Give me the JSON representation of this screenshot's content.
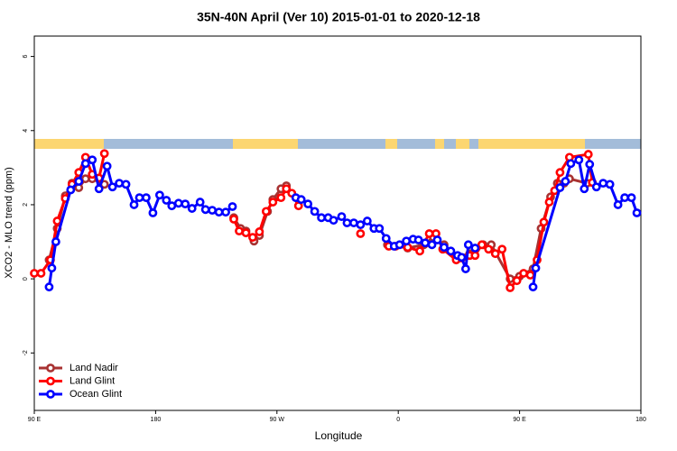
{
  "chart_data": {
    "type": "line",
    "title": "35N-40N April (Ver 10)   2015-01-01 to 2020-12-18",
    "x_label": "Longitude",
    "y_label": "XCO2 - MLO trend (ppm)",
    "xlim": [
      90,
      540
    ],
    "xticks": [
      {
        "value": 90,
        "label": "90 E"
      },
      {
        "value": 180,
        "label": "180"
      },
      {
        "value": 270,
        "label": "90 W"
      },
      {
        "value": 360,
        "label": "0"
      },
      {
        "value": 450,
        "label": "90 E"
      },
      {
        "value": 540,
        "label": "180"
      }
    ],
    "ylim": [
      -3.55,
      6.55
    ],
    "yticks": [
      -2,
      0,
      2,
      4,
      6
    ],
    "legend": "bottom-left",
    "series": [
      {
        "name": "Land Nadir",
        "color": "#a83232",
        "x": [
          101,
          107,
          113,
          118,
          123,
          128,
          133,
          142,
          190,
          238,
          243,
          247,
          253,
          257,
          263,
          267,
          273,
          277,
          315,
          352,
          367,
          379,
          386,
          394,
          403,
          413,
          423,
          429,
          443,
          450,
          460,
          466,
          473,
          478,
          483,
          487,
          500
        ],
        "values": [
          0.51,
          1.36,
          2.24,
          2.58,
          2.46,
          2.7,
          2.7,
          2.55,
          null,
          1.65,
          1.36,
          1.29,
          1.02,
          1.17,
          1.82,
          2.14,
          2.43,
          2.51,
          null,
          0.92,
          0.83,
          0.92,
          1.12,
          0.92,
          0.58,
          0.68,
          0.92,
          0.92,
          0,
          0.07,
          0.27,
          1.36,
          2.21,
          2.58,
          2.58,
          2.7,
          2.58
        ]
      },
      {
        "name": "Land Glint",
        "color": "#ff0000",
        "x": [
          90,
          95,
          102,
          107,
          113,
          118,
          123,
          128,
          133,
          138,
          142,
          190,
          238,
          242,
          247,
          252,
          257,
          262,
          267,
          273,
          277,
          281,
          286,
          310,
          332,
          343,
          353,
          358,
          367,
          376,
          383,
          388,
          393,
          403,
          407,
          413,
          417,
          422,
          427,
          432,
          437,
          443,
          448,
          453,
          458,
          463,
          468,
          472,
          476,
          480,
          487,
          501,
          504
        ],
        "values": [
          0.15,
          0.15,
          0.51,
          1.56,
          2.17,
          2.55,
          2.87,
          3.28,
          2.82,
          2.72,
          3.38,
          null,
          1.61,
          1.29,
          1.24,
          1.12,
          1.27,
          1.82,
          2.07,
          2.19,
          2.43,
          2.31,
          1.97,
          null,
          1.22,
          null,
          0.88,
          0.88,
          0.85,
          0.75,
          1.22,
          1.22,
          0.8,
          0.51,
          0.56,
          0.63,
          0.63,
          0.92,
          0.8,
          0.68,
          0.8,
          -0.24,
          -0.05,
          0.15,
          0.1,
          0.51,
          1.53,
          2.07,
          2.38,
          2.87,
          3.28,
          3.36,
          2.6
        ]
      },
      {
        "name": "Ocean Glint",
        "color": "#0000ff",
        "x": [
          101,
          103,
          106,
          117,
          123,
          128,
          133,
          138,
          144,
          148,
          153,
          158,
          164,
          168,
          173,
          178,
          183,
          188,
          192,
          197,
          202,
          207,
          213,
          217,
          222,
          227,
          232,
          237,
          260,
          284,
          288,
          293,
          298,
          303,
          308,
          312,
          318,
          322,
          327,
          332,
          337,
          342,
          346,
          351,
          357,
          361,
          366,
          371,
          375,
          380,
          385,
          389,
          394,
          399,
          404,
          407,
          410,
          412,
          417,
          440,
          460,
          462,
          480,
          484,
          488,
          494,
          498,
          502,
          507,
          512,
          517,
          523,
          528,
          533,
          537
        ],
        "values": [
          -0.22,
          0.29,
          1.0,
          2.4,
          2.63,
          3.11,
          3.21,
          2.43,
          3.04,
          2.48,
          2.58,
          2.55,
          2.0,
          2.19,
          2.19,
          1.78,
          2.26,
          2.12,
          1.97,
          2.04,
          2.02,
          1.9,
          2.07,
          1.87,
          1.85,
          1.8,
          1.8,
          1.95,
          null,
          2.19,
          2.14,
          2.02,
          1.82,
          1.65,
          1.65,
          1.58,
          1.68,
          1.51,
          1.51,
          1.46,
          1.56,
          1.36,
          1.36,
          1.09,
          0.88,
          0.92,
          1.02,
          1.07,
          1.05,
          0.97,
          0.92,
          1.05,
          0.85,
          0.75,
          0.63,
          0.58,
          0.27,
          0.92,
          0.83,
          null,
          -0.22,
          0.29,
          2.46,
          2.63,
          3.11,
          3.21,
          2.43,
          3.09,
          2.48,
          2.58,
          2.55,
          2.0,
          2.19,
          2.19,
          1.78
        ]
      }
    ]
  }
}
